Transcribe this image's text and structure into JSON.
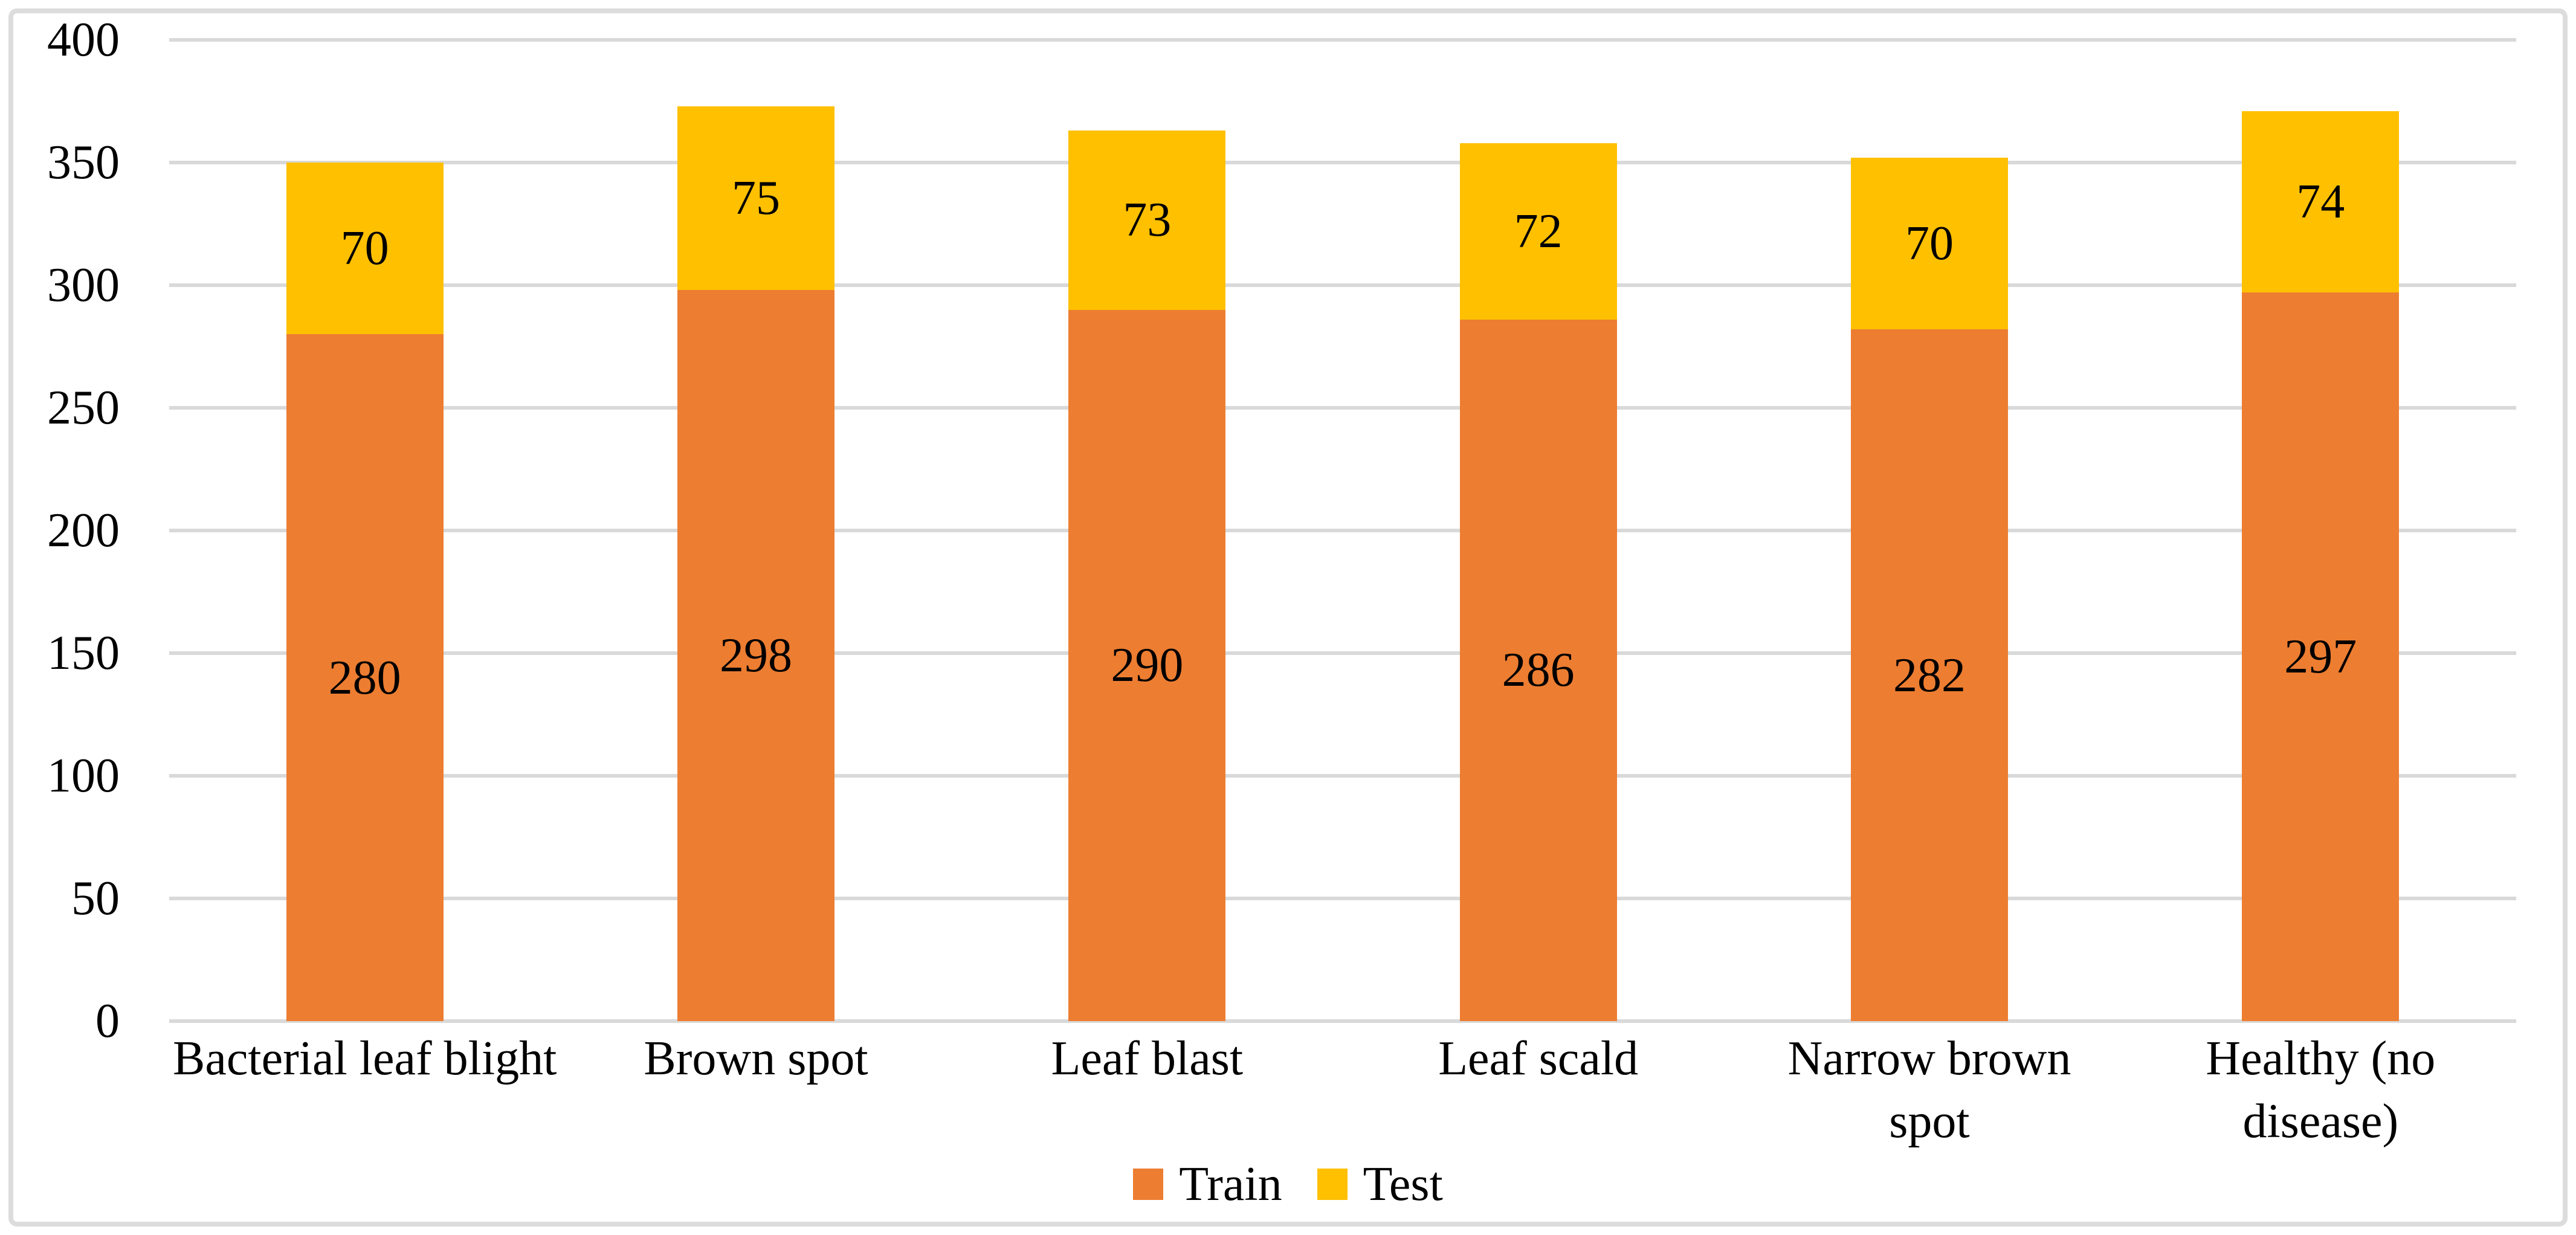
{
  "figure": {
    "background_color": "#FFFFFF",
    "border_color": "#DCDCDC"
  },
  "chart_data": {
    "type": "bar",
    "stacked": true,
    "title": "",
    "xlabel": "",
    "ylabel": "",
    "categories": [
      "Bacterial leaf blight",
      "Brown spot",
      "Leaf blast",
      "Leaf scald",
      "Narrow brown\nspot",
      "Healthy (no\ndisease)"
    ],
    "series": [
      {
        "name": "Train",
        "color": "#ED7D31",
        "values": [
          280,
          298,
          290,
          286,
          282,
          297
        ]
      },
      {
        "name": "Test",
        "color": "#FFC000",
        "values": [
          70,
          75,
          73,
          72,
          70,
          74
        ]
      }
    ],
    "totals": [
      350,
      373,
      363,
      358,
      352,
      371
    ],
    "ylim": [
      0,
      400
    ],
    "ytick_step": 50,
    "yticks": [
      "400",
      "350",
      "300",
      "250",
      "200",
      "150",
      "100",
      "50",
      "0"
    ],
    "grid": true,
    "gridline_color": "#D9D9D9",
    "axis_line_color": "#D9D9D9",
    "legend_position": "bottom-center",
    "bar_label_color": "#000000"
  }
}
